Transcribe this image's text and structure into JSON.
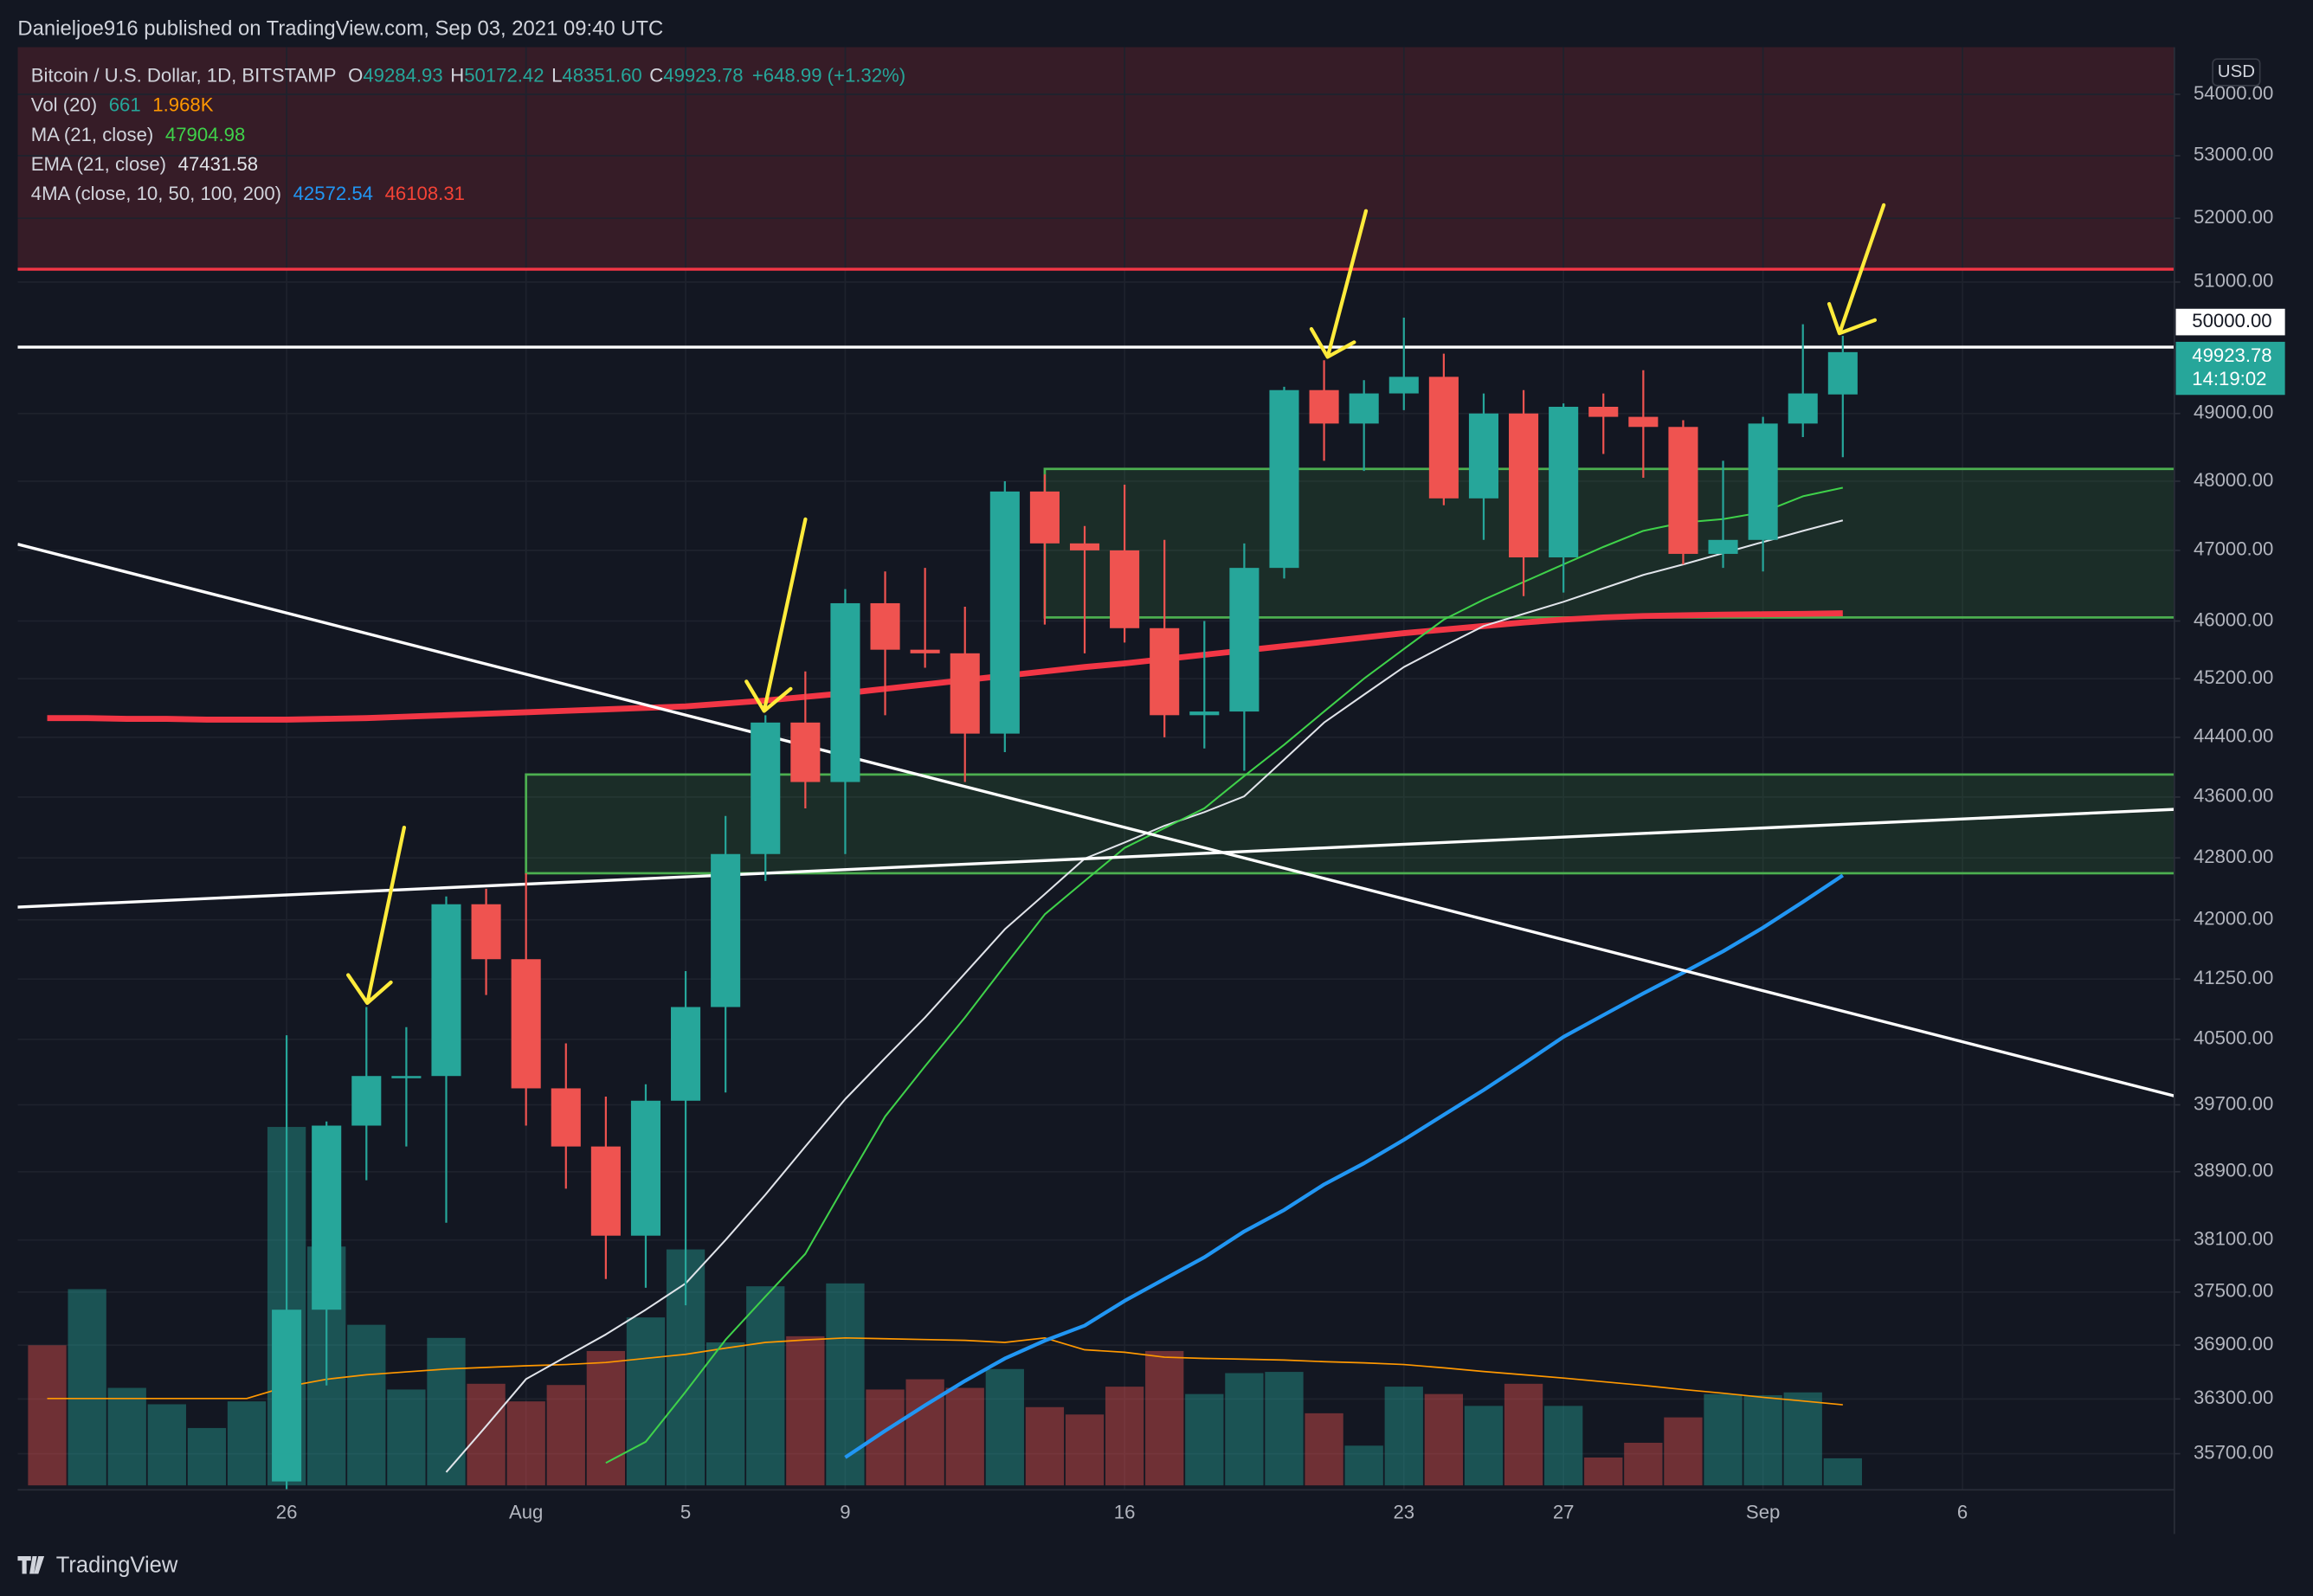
{
  "header": "Danieljoe916 published on TradingView.com, Sep 03, 2021 09:40 UTC",
  "footer": "TradingView",
  "currency": "USD",
  "legend": {
    "symbol": "Bitcoin / U.S. Dollar, 1D, BITSTAMP",
    "ohlc": [
      {
        "key": "O",
        "value": "49284.93"
      },
      {
        "key": "H",
        "value": "50172.42"
      },
      {
        "key": "L",
        "value": "48351.60"
      },
      {
        "key": "C",
        "value": "49923.78"
      }
    ],
    "change": "+648.99 (+1.32%)",
    "indicators": [
      {
        "name": "Vol (20)",
        "values": [
          "661",
          "1.968K"
        ],
        "colors": [
          "#26a69a",
          "#ff9800"
        ]
      },
      {
        "name": "MA (21, close)",
        "values": [
          "47904.98"
        ],
        "colors": [
          "#3fd14a"
        ]
      },
      {
        "name": "EMA (21, close)",
        "values": [
          "47431.58"
        ],
        "colors": [
          "#e1e4ea"
        ]
      },
      {
        "name": "4MA (close, 10, 50, 100, 200)",
        "values": [
          "42572.54",
          "46108.31"
        ],
        "colors": [
          "#2196f3",
          "#f44336"
        ]
      }
    ]
  },
  "chart_data": {
    "type": "candlestick",
    "log_scale": true,
    "grid": true,
    "up_color": "#26a69a",
    "down_color": "#ef5350",
    "categories": [
      null,
      null,
      null,
      null,
      null,
      null,
      "26",
      null,
      null,
      null,
      null,
      null,
      "Aug",
      null,
      null,
      null,
      "5",
      null,
      null,
      null,
      "9",
      null,
      null,
      null,
      null,
      null,
      null,
      "16",
      null,
      null,
      null,
      null,
      null,
      null,
      "23",
      null,
      null,
      null,
      "27",
      null,
      null,
      null,
      null,
      "Sep",
      null,
      null,
      null,
      null,
      "6"
    ],
    "open": [
      null,
      null,
      null,
      null,
      null,
      null,
      35400,
      37300,
      39450,
      40050,
      40050,
      42200,
      41500,
      39900,
      39200,
      38150,
      39750,
      40900,
      42850,
      44600,
      43800,
      46250,
      45600,
      45550,
      44450,
      47850,
      47100,
      47000,
      45900,
      44700,
      44750,
      46750,
      49350,
      48850,
      49300,
      49550,
      47750,
      49000,
      46900,
      49100,
      48950,
      48800,
      46950,
      47150,
      48850,
      49284.93,
      null,
      null,
      null
    ],
    "high": [
      null,
      null,
      null,
      null,
      null,
      null,
      40550,
      39500,
      40900,
      40650,
      42300,
      42400,
      42600,
      40450,
      39800,
      39950,
      41350,
      43350,
      44700,
      45300,
      46450,
      46700,
      46750,
      46200,
      48000,
      48100,
      47350,
      47950,
      47150,
      46000,
      47100,
      49400,
      49800,
      49500,
      50450,
      49900,
      49300,
      49350,
      49150,
      49300,
      49650,
      48900,
      48300,
      48950,
      50350,
      50172.42,
      null,
      null,
      null
    ],
    "low": [
      null,
      null,
      null,
      null,
      null,
      null,
      35250,
      36450,
      38800,
      39200,
      38300,
      41050,
      39450,
      38700,
      37650,
      37550,
      37350,
      39850,
      42500,
      43450,
      42850,
      44700,
      45350,
      43800,
      44200,
      45950,
      45550,
      45700,
      44400,
      44250,
      43950,
      46600,
      48300,
      48150,
      49050,
      47650,
      47150,
      46350,
      46400,
      48400,
      48050,
      46800,
      46750,
      46700,
      48650,
      48351.6,
      null,
      null,
      null
    ],
    "close": [
      null,
      null,
      null,
      null,
      null,
      null,
      37300,
      39450,
      40050,
      40050,
      42200,
      41500,
      39900,
      39200,
      38150,
      39750,
      40900,
      42850,
      44600,
      43800,
      46250,
      45600,
      45550,
      44450,
      47850,
      47100,
      47000,
      45900,
      44700,
      44750,
      46750,
      49350,
      48850,
      49300,
      49550,
      47750,
      49000,
      46900,
      49100,
      48950,
      48800,
      46950,
      47150,
      48850,
      49300,
      49923.78,
      null,
      null,
      null
    ],
    "volume": [
      3420,
      4790,
      2380,
      1980,
      1400,
      2050,
      8750,
      5830,
      3920,
      2340,
      3600,
      2480,
      2050,
      2450,
      3280,
      4100,
      5760,
      3490,
      4860,
      3640,
      4930,
      2340,
      2590,
      2380,
      2840,
      1910,
      1730,
      2410,
      3280,
      2230,
      2740,
      2770,
      1760,
      970,
      2410,
      2230,
      1940,
      2480,
      1940,
      680,
      1040,
      1660,
      2230,
      2200,
      2270,
      661,
      null,
      null,
      null
    ],
    "volume_colors": [
      "#ef5350",
      "#26a69a",
      "#26a69a",
      "#26a69a",
      "#26a69a",
      "#26a69a",
      "#26a69a",
      "#26a69a",
      "#26a69a",
      "#26a69a",
      "#26a69a",
      "#ef5350",
      "#ef5350",
      "#ef5350",
      "#ef5350",
      "#26a69a",
      "#26a69a",
      "#26a69a",
      "#26a69a",
      "#ef5350",
      "#26a69a",
      "#ef5350",
      "#ef5350",
      "#ef5350",
      "#26a69a",
      "#ef5350",
      "#ef5350",
      "#ef5350",
      "#ef5350",
      "#26a69a",
      "#26a69a",
      "#26a69a",
      "#ef5350",
      "#26a69a",
      "#26a69a",
      "#ef5350",
      "#26a69a",
      "#ef5350",
      "#26a69a",
      "#ef5350",
      "#ef5350",
      "#ef5350",
      "#26a69a",
      "#26a69a",
      "#26a69a",
      "#26a69a",
      null,
      null,
      null
    ],
    "volume_ma": {
      "color": "#ff9800",
      "values": [
        2120,
        2120,
        2120,
        2120,
        2120,
        2120,
        2410,
        2590,
        2700,
        2770,
        2840,
        2880,
        2920,
        2950,
        3000,
        3100,
        3200,
        3350,
        3490,
        3550,
        3600,
        3580,
        3560,
        3540,
        3490,
        3600,
        3310,
        3250,
        3130,
        3100,
        3080,
        3060,
        3020,
        2990,
        2950,
        2870,
        2780,
        2700,
        2620,
        2530,
        2440,
        2340,
        2250,
        2150,
        2060,
        1968,
        null,
        null,
        null
      ]
    },
    "lines": [
      {
        "color": "#f23645",
        "width": 4,
        "values": [
          44660,
          44660,
          44650,
          44650,
          44640,
          44640,
          44640,
          44650,
          44660,
          44680,
          44700,
          44720,
          44740,
          44760,
          44780,
          44800,
          44820,
          44860,
          44900,
          44950,
          45000,
          45060,
          45120,
          45180,
          45240,
          45300,
          45360,
          45410,
          45470,
          45530,
          45590,
          45650,
          45710,
          45770,
          45830,
          45880,
          45930,
          45980,
          46020,
          46050,
          46070,
          46080,
          46090,
          46095,
          46100,
          46108.31,
          null,
          null,
          null
        ]
      },
      {
        "color": "#2196f3",
        "width": 2.5,
        "values": [
          null,
          null,
          null,
          null,
          null,
          null,
          null,
          null,
          null,
          null,
          null,
          null,
          null,
          null,
          null,
          null,
          null,
          null,
          null,
          null,
          35660,
          35950,
          36230,
          36500,
          36750,
          36950,
          37120,
          37400,
          37650,
          37900,
          38200,
          38450,
          38750,
          39000,
          39280,
          39580,
          39880,
          40200,
          40530,
          40800,
          41070,
          41330,
          41600,
          41900,
          42230,
          42572.54,
          null,
          null,
          null
        ]
      },
      {
        "color": "#e1e4ea",
        "width": 1.2,
        "values": [
          null,
          null,
          null,
          null,
          null,
          null,
          null,
          null,
          null,
          null,
          35500,
          36000,
          36520,
          36770,
          37020,
          37300,
          37600,
          38100,
          38630,
          39200,
          39770,
          40270,
          40770,
          41320,
          41880,
          42330,
          42790,
          43000,
          43220,
          43400,
          43610,
          44100,
          44600,
          44980,
          45360,
          45650,
          45930,
          46100,
          46270,
          46460,
          46650,
          46800,
          46960,
          47120,
          47280,
          47431.58,
          null,
          null,
          null
        ]
      },
      {
        "color": "#3fd14a",
        "width": 1.2,
        "values": [
          null,
          null,
          null,
          null,
          null,
          null,
          null,
          null,
          null,
          null,
          null,
          null,
          null,
          null,
          35600,
          35830,
          36380,
          36960,
          37450,
          37940,
          38750,
          39560,
          40170,
          40770,
          41420,
          42070,
          42500,
          42930,
          43190,
          43450,
          43880,
          44300,
          44750,
          45200,
          45610,
          46020,
          46300,
          46550,
          46800,
          47050,
          47280,
          47400,
          47450,
          47550,
          47780,
          47904.98,
          null,
          null,
          null
        ]
      }
    ],
    "ylim": [
      35310,
      54780
    ],
    "yticks": [
      {
        "value": 35700,
        "label": "35700.00"
      },
      {
        "value": 36300,
        "label": "36300.00"
      },
      {
        "value": 36900,
        "label": "36900.00"
      },
      {
        "value": 37500,
        "label": "37500.00"
      },
      {
        "value": 38100,
        "label": "38100.00"
      },
      {
        "value": 38900,
        "label": "38900.00"
      },
      {
        "value": 39700,
        "label": "39700.00"
      },
      {
        "value": 40500,
        "label": "40500.00"
      },
      {
        "value": 41250,
        "label": "41250.00"
      },
      {
        "value": 42000,
        "label": "42000.00"
      },
      {
        "value": 42800,
        "label": "42800.00"
      },
      {
        "value": 43600,
        "label": "43600.00"
      },
      {
        "value": 44400,
        "label": "44400.00"
      },
      {
        "value": 45200,
        "label": "45200.00"
      },
      {
        "value": 46000,
        "label": "46000.00"
      },
      {
        "value": 47000,
        "label": "47000.00"
      },
      {
        "value": 48000,
        "label": "48000.00"
      },
      {
        "value": 49000,
        "label": "49000.00"
      },
      {
        "value": 51000,
        "label": "51000.00"
      },
      {
        "value": 52000,
        "label": "52000.00"
      },
      {
        "value": 53000,
        "label": "53000.00"
      },
      {
        "value": 54000,
        "label": "54000.00"
      }
    ],
    "resistance_zone": {
      "low": 51200,
      "color": "#f23645"
    },
    "hlines": [
      {
        "value": 51200,
        "color": "#f23645"
      },
      {
        "value": 50000,
        "color": "#ffffff",
        "label": "50000.00"
      }
    ],
    "boxes": [
      {
        "low": 46050,
        "high": 48180,
        "color": "#4caf50"
      },
      {
        "low": 42600,
        "high": 43900,
        "color": "#4caf50"
      }
    ],
    "trendlines": [
      {
        "color": "#ffffff",
        "values": [
          46980,
          40470
        ]
      },
      {
        "color": "#ffffff",
        "values": [
          42180,
          43310
        ]
      }
    ],
    "last_price": {
      "label": "49923.78",
      "countdown": "14:19:02",
      "color": "#26a69a"
    }
  }
}
